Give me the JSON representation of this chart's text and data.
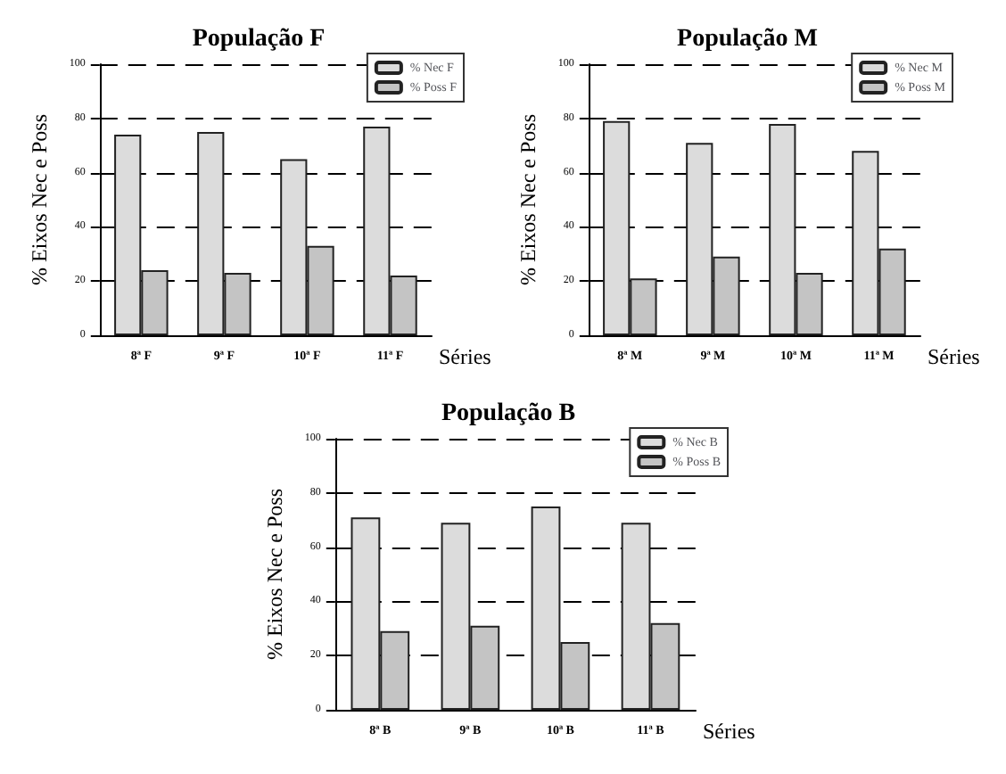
{
  "chart_data": [
    {
      "type": "bar",
      "title": "População F",
      "xlabel": "Séries",
      "ylabel": "% Eixos Nec e Poss",
      "categories": [
        "8ª F",
        "9ª F",
        "10ª F",
        "11ª F"
      ],
      "series": [
        {
          "name": "% Nec F",
          "color": "#dcdcdc",
          "values": [
            74,
            75,
            65,
            77
          ]
        },
        {
          "name": "% Poss F",
          "color": "#c4c4c4",
          "values": [
            24,
            23,
            33,
            22
          ]
        }
      ],
      "ylim": [
        0,
        100
      ],
      "yticks": [
        0,
        20,
        40,
        60,
        80,
        100
      ],
      "grid": "y",
      "legend": "top right"
    },
    {
      "type": "bar",
      "title": "População M",
      "xlabel": "Séries",
      "ylabel": "% Eixos Nec e Poss",
      "categories": [
        "8ª M",
        "9ª M",
        "10ª M",
        "11ª M"
      ],
      "series": [
        {
          "name": "% Nec M",
          "color": "#dcdcdc",
          "values": [
            79,
            71,
            78,
            68
          ]
        },
        {
          "name": "% Poss M",
          "color": "#c4c4c4",
          "values": [
            21,
            29,
            23,
            32
          ]
        }
      ],
      "ylim": [
        0,
        100
      ],
      "yticks": [
        0,
        20,
        40,
        60,
        80,
        100
      ],
      "grid": "y",
      "legend": "top right"
    },
    {
      "type": "bar",
      "title": "População B",
      "xlabel": "Séries",
      "ylabel": "% Eixos Nec e Poss",
      "categories": [
        "8ª B",
        "9ª B",
        "10ª B",
        "11ª B"
      ],
      "series": [
        {
          "name": "% Nec B",
          "color": "#dcdcdc",
          "values": [
            71,
            69,
            75,
            69
          ]
        },
        {
          "name": "% Poss B",
          "color": "#c4c4c4",
          "values": [
            29,
            31,
            25,
            32
          ]
        }
      ],
      "ylim": [
        0,
        100
      ],
      "yticks": [
        0,
        20,
        40,
        60,
        80,
        100
      ],
      "grid": "y",
      "legend": "top right"
    }
  ]
}
